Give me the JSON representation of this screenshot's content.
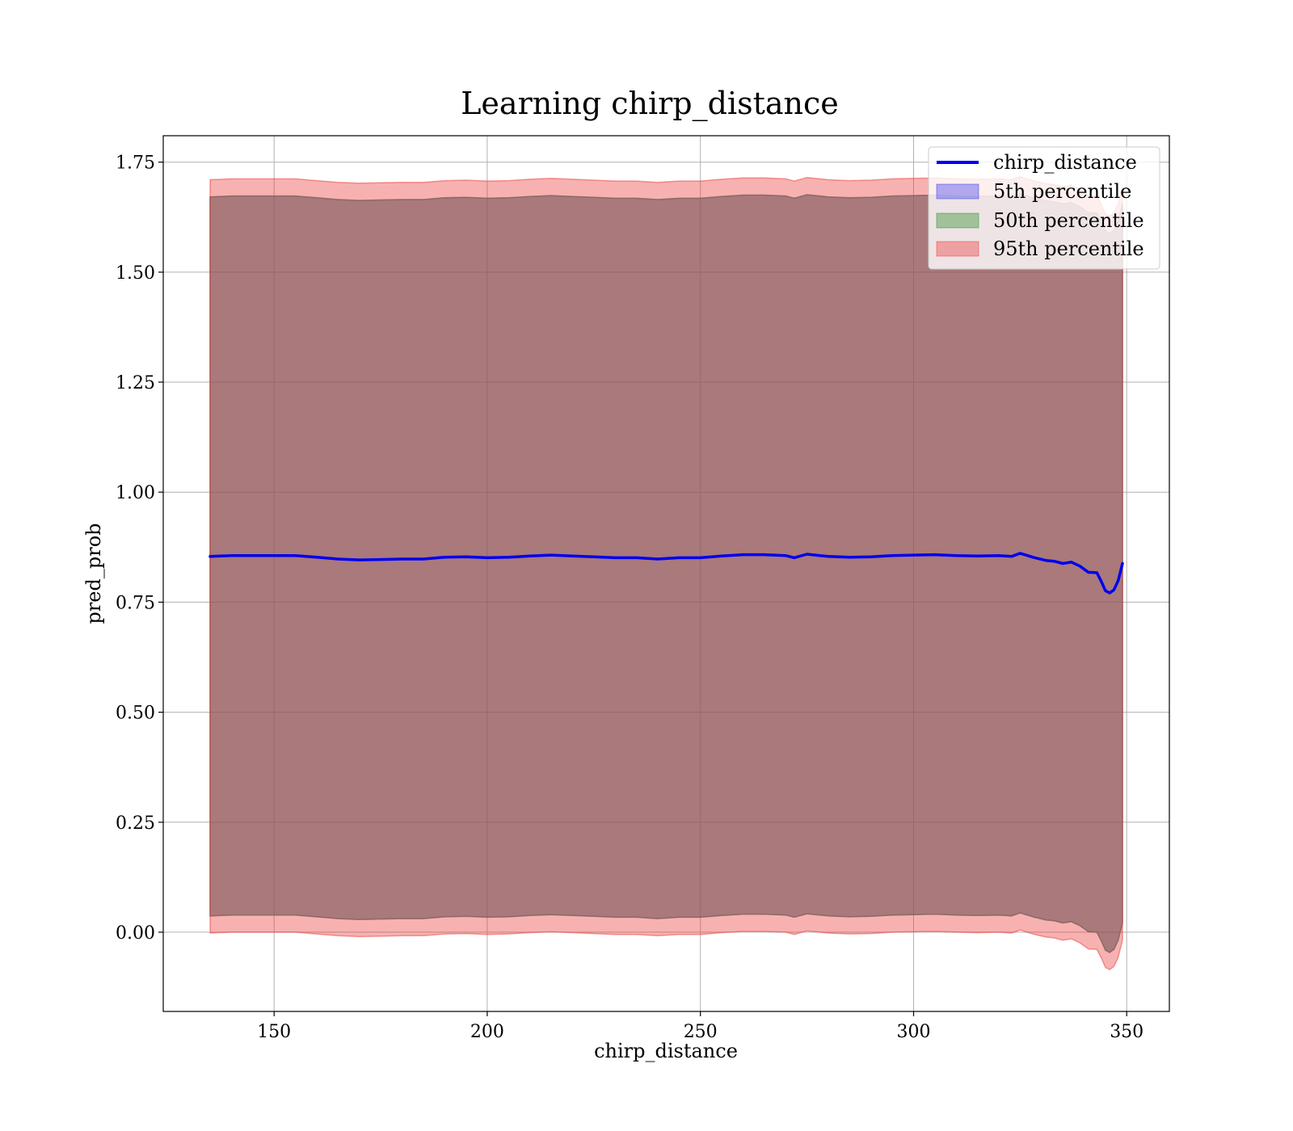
{
  "chart_data": {
    "type": "line",
    "title": "Learning chirp_distance",
    "xlabel": "chirp_distance",
    "ylabel": "pred_prob",
    "xlim": [
      124,
      360
    ],
    "ylim": [
      -0.18,
      1.81
    ],
    "xticks": [
      150,
      200,
      250,
      300,
      350
    ],
    "xtick_labels": [
      "150",
      "200",
      "250",
      "300",
      "350"
    ],
    "yticks": [
      0.0,
      0.25,
      0.5,
      0.75,
      1.0,
      1.25,
      1.5,
      1.75
    ],
    "ytick_labels": [
      "0.00",
      "0.25",
      "0.50",
      "0.75",
      "1.00",
      "1.25",
      "1.50",
      "1.75"
    ],
    "grid": true,
    "legend_position": "top-right",
    "x": [
      135,
      140,
      145,
      150,
      155,
      160,
      165,
      170,
      175,
      180,
      185,
      190,
      195,
      200,
      205,
      210,
      215,
      220,
      225,
      230,
      235,
      240,
      245,
      250,
      255,
      260,
      265,
      270,
      272,
      275,
      280,
      285,
      290,
      295,
      300,
      305,
      310,
      315,
      320,
      323,
      325,
      328,
      331,
      333,
      335,
      337,
      339,
      341,
      343,
      344,
      345,
      346,
      347,
      348,
      349
    ],
    "line": {
      "name": "chirp_distance",
      "color": "#0000ee",
      "values": [
        0.854,
        0.856,
        0.856,
        0.856,
        0.856,
        0.852,
        0.848,
        0.846,
        0.847,
        0.848,
        0.848,
        0.852,
        0.853,
        0.851,
        0.852,
        0.855,
        0.857,
        0.855,
        0.853,
        0.851,
        0.851,
        0.848,
        0.851,
        0.851,
        0.855,
        0.858,
        0.858,
        0.856,
        0.851,
        0.859,
        0.854,
        0.852,
        0.853,
        0.856,
        0.857,
        0.858,
        0.856,
        0.855,
        0.856,
        0.854,
        0.861,
        0.852,
        0.845,
        0.843,
        0.838,
        0.841,
        0.832,
        0.818,
        0.817,
        0.798,
        0.776,
        0.771,
        0.778,
        0.799,
        0.838
      ]
    },
    "bands": [
      {
        "name": "5th percentile",
        "color": "#3b3bee",
        "lower": [
          0.037,
          0.039,
          0.039,
          0.039,
          0.039,
          0.035,
          0.031,
          0.029,
          0.03,
          0.031,
          0.031,
          0.035,
          0.036,
          0.034,
          0.035,
          0.038,
          0.04,
          0.038,
          0.036,
          0.034,
          0.034,
          0.031,
          0.034,
          0.034,
          0.038,
          0.041,
          0.041,
          0.039,
          0.034,
          0.042,
          0.037,
          0.035,
          0.036,
          0.039,
          0.04,
          0.041,
          0.039,
          0.038,
          0.039,
          0.037,
          0.044,
          0.035,
          0.028,
          0.026,
          0.021,
          0.024,
          0.015,
          0.001,
          0.0,
          -0.019,
          -0.041,
          -0.046,
          -0.039,
          -0.018,
          0.021
        ],
        "upper": [
          1.671,
          1.673,
          1.673,
          1.673,
          1.673,
          1.669,
          1.665,
          1.663,
          1.664,
          1.665,
          1.665,
          1.669,
          1.67,
          1.668,
          1.669,
          1.672,
          1.674,
          1.672,
          1.67,
          1.668,
          1.668,
          1.665,
          1.668,
          1.668,
          1.672,
          1.675,
          1.675,
          1.673,
          1.668,
          1.676,
          1.671,
          1.669,
          1.67,
          1.673,
          1.674,
          1.675,
          1.673,
          1.672,
          1.673,
          1.671,
          1.678,
          1.669,
          1.662,
          1.66,
          1.655,
          1.658,
          1.649,
          1.635,
          1.634,
          1.615,
          1.593,
          1.588,
          1.595,
          1.616,
          1.655
        ]
      },
      {
        "name": "50th percentile",
        "color": "#2e8b2e",
        "lower": [
          0.037,
          0.039,
          0.039,
          0.039,
          0.039,
          0.035,
          0.031,
          0.029,
          0.03,
          0.031,
          0.031,
          0.035,
          0.036,
          0.034,
          0.035,
          0.038,
          0.04,
          0.038,
          0.036,
          0.034,
          0.034,
          0.031,
          0.034,
          0.034,
          0.038,
          0.041,
          0.041,
          0.039,
          0.034,
          0.042,
          0.037,
          0.035,
          0.036,
          0.039,
          0.04,
          0.041,
          0.039,
          0.038,
          0.039,
          0.037,
          0.044,
          0.035,
          0.028,
          0.026,
          0.021,
          0.024,
          0.015,
          0.001,
          0.0,
          -0.019,
          -0.041,
          -0.046,
          -0.039,
          -0.018,
          0.021
        ],
        "upper": [
          1.671,
          1.673,
          1.673,
          1.673,
          1.673,
          1.669,
          1.665,
          1.663,
          1.664,
          1.665,
          1.665,
          1.669,
          1.67,
          1.668,
          1.669,
          1.672,
          1.674,
          1.672,
          1.67,
          1.668,
          1.668,
          1.665,
          1.668,
          1.668,
          1.672,
          1.675,
          1.675,
          1.673,
          1.668,
          1.676,
          1.671,
          1.669,
          1.67,
          1.673,
          1.674,
          1.675,
          1.673,
          1.672,
          1.673,
          1.671,
          1.678,
          1.669,
          1.662,
          1.66,
          1.655,
          1.658,
          1.649,
          1.635,
          1.634,
          1.615,
          1.593,
          1.588,
          1.595,
          1.616,
          1.655
        ]
      },
      {
        "name": "95th percentile",
        "color": "#ee3b3b",
        "lower": [
          -0.002,
          0.0,
          0.0,
          0.0,
          0.0,
          -0.004,
          -0.008,
          -0.01,
          -0.009,
          -0.008,
          -0.008,
          -0.004,
          -0.003,
          -0.005,
          -0.004,
          -0.001,
          0.001,
          -0.001,
          -0.003,
          -0.005,
          -0.005,
          -0.008,
          -0.005,
          -0.005,
          -0.001,
          0.002,
          0.002,
          0.0,
          -0.005,
          0.003,
          -0.002,
          -0.004,
          -0.003,
          0.0,
          0.001,
          0.002,
          0.0,
          -0.001,
          0.0,
          -0.002,
          0.005,
          -0.004,
          -0.011,
          -0.013,
          -0.018,
          -0.015,
          -0.024,
          -0.038,
          -0.039,
          -0.058,
          -0.08,
          -0.085,
          -0.078,
          -0.057,
          -0.018
        ],
        "upper": [
          1.71,
          1.712,
          1.712,
          1.712,
          1.712,
          1.708,
          1.704,
          1.702,
          1.703,
          1.704,
          1.704,
          1.708,
          1.709,
          1.707,
          1.708,
          1.711,
          1.713,
          1.711,
          1.709,
          1.707,
          1.707,
          1.704,
          1.707,
          1.707,
          1.711,
          1.714,
          1.714,
          1.712,
          1.707,
          1.715,
          1.71,
          1.708,
          1.709,
          1.712,
          1.713,
          1.714,
          1.712,
          1.711,
          1.712,
          1.71,
          1.717,
          1.708,
          1.701,
          1.699,
          1.694,
          1.697,
          1.688,
          1.674,
          1.673,
          1.654,
          1.632,
          1.627,
          1.634,
          1.655,
          1.694
        ]
      }
    ]
  }
}
